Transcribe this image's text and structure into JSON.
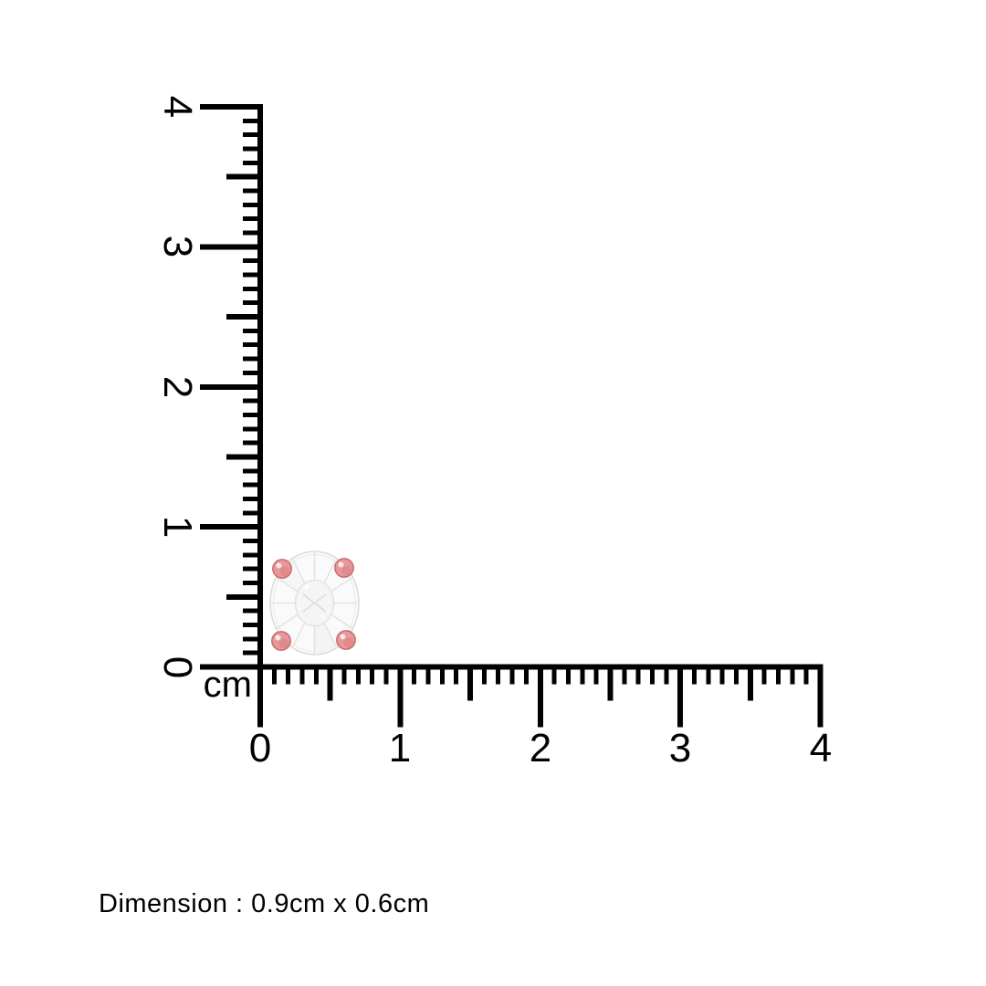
{
  "ruler": {
    "unit_label": "cm",
    "ticks_per_cm": 10,
    "cm_min": 0,
    "cm_max": 4,
    "vertical": {
      "labels": [
        "4",
        "3",
        "2",
        "1",
        "0"
      ]
    },
    "horizontal": {
      "labels": [
        "0",
        "1",
        "2",
        "3",
        "4"
      ]
    }
  },
  "gem": {
    "type": "oval-gemstone-stud-earring",
    "stone_color": "#fafafa",
    "stone_outline_color": "#dcdcdc",
    "facet_color": "#e7e7e7",
    "table_color": "#ededed",
    "prong_color": "#e8989a",
    "prong_edge_color": "#c4686b",
    "prong_highlight_color": "#fbe2e2"
  },
  "caption": {
    "text": "Dimension : 0.9cm x 0.6cm"
  },
  "colors": {
    "line": "#000000",
    "background": "#ffffff",
    "text": "#000000"
  }
}
